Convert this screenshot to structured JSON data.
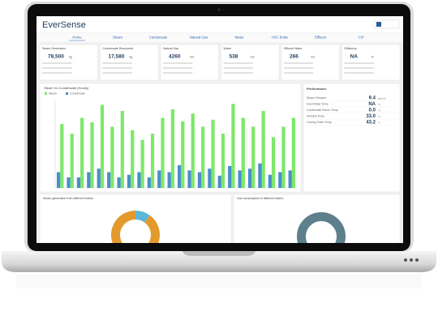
{
  "header": {
    "title": "EverSense"
  },
  "nav": [
    "Home",
    "Steam",
    "Condensate",
    "Natural Gas",
    "Water",
    "HSC Boiler",
    "Effluent",
    "CIP"
  ],
  "cards": [
    {
      "title": "Steam Generation",
      "value": "78,500",
      "unit": "kg"
    },
    {
      "title": "Condensate Recovered",
      "value": "17,580",
      "unit": "kg"
    },
    {
      "title": "Natural Gas",
      "value": "4260",
      "unit": "m3"
    },
    {
      "title": "Water",
      "value": "538",
      "unit": "m3"
    },
    {
      "title": "Effluent Water",
      "value": "266",
      "unit": "m3"
    },
    {
      "title": "Efficiency",
      "value": "NA",
      "unit": "%"
    }
  ],
  "bar_chart": {
    "title": "Steam Vs Condensate (Hourly)",
    "ylim": [
      0,
      100
    ],
    "series": [
      {
        "name": "Steam",
        "color": "#7ee86a",
        "values": [
          73,
          62,
          80,
          75,
          95,
          70,
          88,
          66,
          55,
          62,
          80,
          90,
          76,
          85,
          70,
          78,
          62,
          96,
          80,
          70,
          88,
          58,
          70,
          80
        ]
      },
      {
        "name": "Condensate",
        "color": "#4a8fc9",
        "values": [
          18,
          12,
          12,
          18,
          22,
          18,
          12,
          15,
          18,
          12,
          20,
          18,
          26,
          20,
          18,
          22,
          14,
          25,
          20,
          22,
          28,
          15,
          18,
          20
        ]
      }
    ]
  },
  "performance": {
    "title": "Performance",
    "rows": [
      {
        "label": "Steam Pressure",
        "value": "9.4",
        "unit": "kg/cm2"
      },
      {
        "label": "Feed Water Temp",
        "value": "NA",
        "unit": "°C"
      },
      {
        "label": "Condensate Return Temp",
        "value": "0.0",
        "unit": "°C"
      },
      {
        "label": "Ambient Temp",
        "value": "33.0",
        "unit": "°C"
      },
      {
        "label": "Cooling Tower Temp",
        "value": "43.2",
        "unit": "°C"
      }
    ]
  },
  "donuts": [
    {
      "title": "Steam generation from different boilers",
      "values": [
        90,
        10
      ],
      "colors": [
        "#e39a2d",
        "#5cb6d8"
      ]
    },
    {
      "title": "Gas consumption in different boilers",
      "values": [
        100
      ],
      "colors": [
        "#5e7f8c"
      ]
    }
  ]
}
